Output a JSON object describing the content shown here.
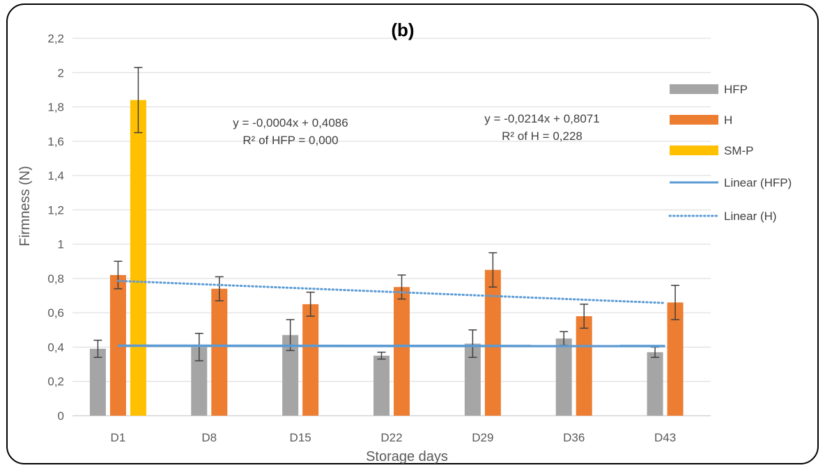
{
  "chart_data": {
    "type": "bar",
    "title": "(b)",
    "xlabel": "Storage days",
    "ylabel": "Firmness (N)",
    "ylim": [
      0,
      2.2
    ],
    "yticks": [
      "0",
      "0,2",
      "0,4",
      "0,6",
      "0,8",
      "1",
      "1,2",
      "1,4",
      "1,6",
      "1,8",
      "2",
      "2,2"
    ],
    "grid": true,
    "legend_position": "right",
    "categories": [
      "D1",
      "D8",
      "D15",
      "D22",
      "D29",
      "D36",
      "D43"
    ],
    "series": [
      {
        "name": "HFP",
        "color": "#a5a5a5",
        "values": [
          0.39,
          0.4,
          0.47,
          0.35,
          0.42,
          0.45,
          0.37
        ],
        "errors": [
          0.05,
          0.08,
          0.09,
          0.02,
          0.08,
          0.04,
          0.03
        ]
      },
      {
        "name": "H",
        "color": "#ed7d31",
        "values": [
          0.82,
          0.74,
          0.65,
          0.75,
          0.85,
          0.58,
          0.66
        ],
        "errors": [
          0.08,
          0.07,
          0.07,
          0.07,
          0.1,
          0.07,
          0.1
        ]
      },
      {
        "name": "SM-P",
        "color": "#ffc000",
        "values": [
          1.84,
          null,
          null,
          null,
          null,
          null,
          null
        ],
        "errors": [
          0.19,
          null,
          null,
          null,
          null,
          null,
          null
        ]
      }
    ],
    "trendlines": [
      {
        "name": "Linear (HFP)",
        "color": "#5b9bd5",
        "style": "solid",
        "start": 0.408,
        "end": 0.406
      },
      {
        "name": "Linear (H)",
        "color": "#5b9bd5",
        "style": "dotted",
        "start": 0.786,
        "end": 0.657
      }
    ],
    "annotations": [
      {
        "line1": "y = -0,0004x + 0,4086",
        "line2": "R² of HFP = 0,000"
      },
      {
        "line1": "y = -0,0214x + 0,8071",
        "line2": "R² of H = 0,228"
      }
    ]
  }
}
